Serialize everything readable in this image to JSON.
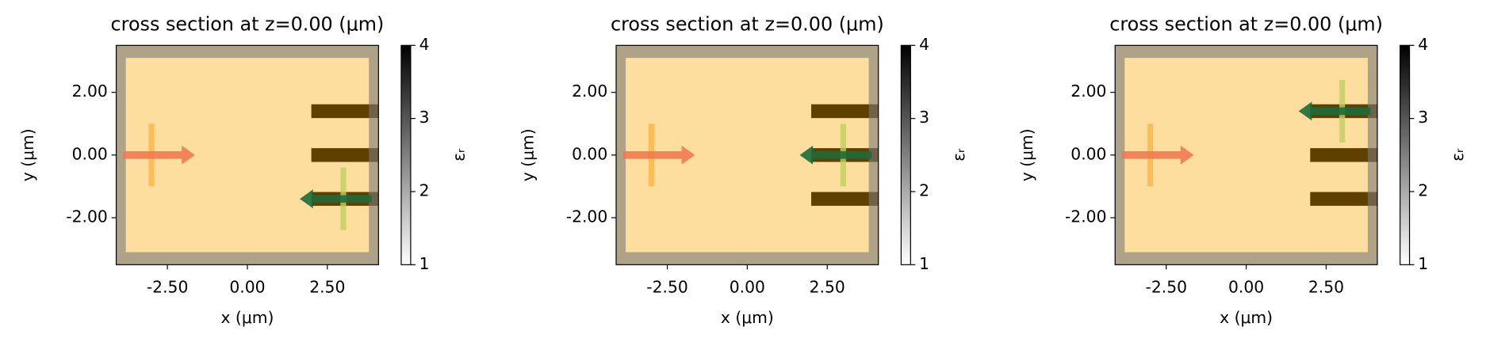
{
  "chart_data": [
    {
      "type": "structure",
      "title": "cross section at z=0.00 (μm)",
      "xlabel": "x (μm)",
      "ylabel": "y (μm)",
      "xlim": [
        -4.1,
        4.1
      ],
      "ylim": [
        -3.5,
        3.5
      ],
      "xticks": [
        {
          "value": -2.5,
          "label": "-2.50"
        },
        {
          "value": 0,
          "label": "0.00"
        },
        {
          "value": 2.5,
          "label": "2.50"
        }
      ],
      "yticks": [
        {
          "value": 2,
          "label": "2.00"
        },
        {
          "value": 0,
          "label": "0.00"
        },
        {
          "value": -2,
          "label": "-2.00"
        }
      ],
      "domain": {
        "x": [
          -3.8,
          3.8
        ],
        "y": [
          -3.1,
          3.1
        ]
      },
      "structures": [
        {
          "x": [
            2,
            4.1
          ],
          "y": [
            1.18,
            1.62
          ],
          "eps": 4
        },
        {
          "x": [
            2,
            4.1
          ],
          "y": [
            -0.22,
            0.22
          ],
          "eps": 4
        },
        {
          "x": [
            2,
            4.1
          ],
          "y": [
            -1.62,
            -1.18
          ],
          "eps": 4
        }
      ],
      "source": {
        "x": -3,
        "y": 0,
        "size": 2,
        "direction": 1,
        "color": "#fbb445",
        "arrow_color": "#f07a50"
      },
      "monitor": {
        "x": 3,
        "y": -1.4,
        "size": 2,
        "direction": -1,
        "color": "#bfcf5c",
        "arrow_color": "#1d6b3a"
      },
      "clim": [
        1,
        4
      ],
      "colorbar_ticks": [
        1,
        2,
        3,
        4
      ],
      "colorbar_label": "εᵣ"
    },
    {
      "type": "structure",
      "title": "cross section at z=0.00 (μm)",
      "xlabel": "x (μm)",
      "ylabel": "y (μm)",
      "xlim": [
        -4.1,
        4.1
      ],
      "ylim": [
        -3.5,
        3.5
      ],
      "xticks": [
        {
          "value": -2.5,
          "label": "-2.50"
        },
        {
          "value": 0,
          "label": "0.00"
        },
        {
          "value": 2.5,
          "label": "2.50"
        }
      ],
      "yticks": [
        {
          "value": 2,
          "label": "2.00"
        },
        {
          "value": 0,
          "label": "0.00"
        },
        {
          "value": -2,
          "label": "-2.00"
        }
      ],
      "domain": {
        "x": [
          -3.8,
          3.8
        ],
        "y": [
          -3.1,
          3.1
        ]
      },
      "structures": [
        {
          "x": [
            2,
            4.1
          ],
          "y": [
            1.18,
            1.62
          ],
          "eps": 4
        },
        {
          "x": [
            2,
            4.1
          ],
          "y": [
            -0.22,
            0.22
          ],
          "eps": 4
        },
        {
          "x": [
            2,
            4.1
          ],
          "y": [
            -1.62,
            -1.18
          ],
          "eps": 4
        }
      ],
      "source": {
        "x": -3,
        "y": 0,
        "size": 2,
        "direction": 1,
        "color": "#fbb445",
        "arrow_color": "#f07a50"
      },
      "monitor": {
        "x": 3,
        "y": 0,
        "size": 2,
        "direction": -1,
        "color": "#bfcf5c",
        "arrow_color": "#1d6b3a"
      },
      "clim": [
        1,
        4
      ],
      "colorbar_ticks": [
        1,
        2,
        3,
        4
      ],
      "colorbar_label": "εᵣ"
    },
    {
      "type": "structure",
      "title": "cross section at z=0.00 (μm)",
      "xlabel": "x (μm)",
      "ylabel": "y (μm)",
      "xlim": [
        -4.1,
        4.1
      ],
      "ylim": [
        -3.5,
        3.5
      ],
      "xticks": [
        {
          "value": -2.5,
          "label": "-2.50"
        },
        {
          "value": 0,
          "label": "0.00"
        },
        {
          "value": 2.5,
          "label": "2.50"
        }
      ],
      "yticks": [
        {
          "value": 2,
          "label": "2.00"
        },
        {
          "value": 0,
          "label": "0.00"
        },
        {
          "value": -2,
          "label": "-2.00"
        }
      ],
      "domain": {
        "x": [
          -3.8,
          3.8
        ],
        "y": [
          -3.1,
          3.1
        ]
      },
      "structures": [
        {
          "x": [
            2,
            4.1
          ],
          "y": [
            1.18,
            1.62
          ],
          "eps": 4
        },
        {
          "x": [
            2,
            4.1
          ],
          "y": [
            -0.22,
            0.22
          ],
          "eps": 4
        },
        {
          "x": [
            2,
            4.1
          ],
          "y": [
            -1.62,
            -1.18
          ],
          "eps": 4
        }
      ],
      "source": {
        "x": -3,
        "y": 0,
        "size": 2,
        "direction": 1,
        "color": "#fbb445",
        "arrow_color": "#f07a50"
      },
      "monitor": {
        "x": 3,
        "y": 1.4,
        "size": 2,
        "direction": -1,
        "color": "#bfcf5c",
        "arrow_color": "#1d6b3a"
      },
      "clim": [
        1,
        4
      ],
      "colorbar_ticks": [
        1,
        2,
        3,
        4
      ],
      "colorbar_label": "εᵣ"
    }
  ]
}
